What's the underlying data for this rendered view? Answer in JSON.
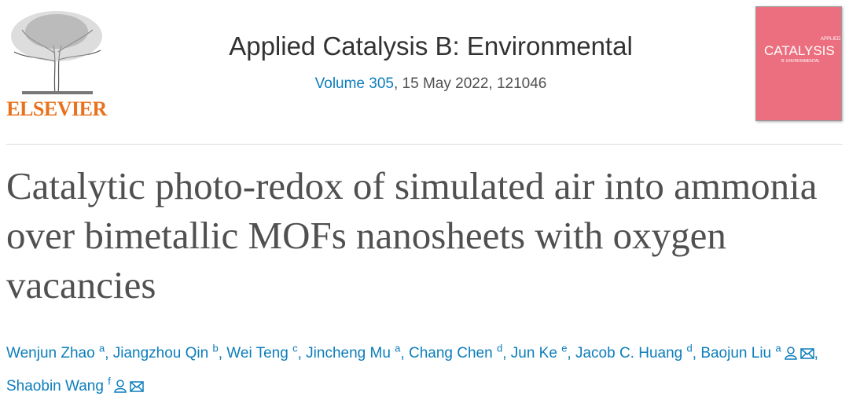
{
  "header": {
    "publisher": "ELSEVIER",
    "journal": "Applied Catalysis B: Environmental",
    "volume": "Volume 305",
    "issue_info": ", 15 May 2022, 121046",
    "cover": {
      "line1": "APPLIED",
      "line2": "CATALYSIS",
      "line3": "B: ENVIRONMENTAL"
    }
  },
  "article": {
    "title": "Catalytic photo-redox of simulated air into ammonia over bimetallic MOFs nanosheets with oxygen vacancies",
    "separator": ", ",
    "authors": [
      {
        "name": "Wenjun Zhao",
        "sup": "a"
      },
      {
        "name": "Jiangzhou Qin",
        "sup": "b"
      },
      {
        "name": "Wei Teng",
        "sup": "c"
      },
      {
        "name": "Jincheng Mu",
        "sup": "a"
      },
      {
        "name": "Chang Chen",
        "sup": "d"
      },
      {
        "name": "Jun Ke",
        "sup": "e"
      },
      {
        "name": "Jacob C. Huang",
        "sup": "d"
      },
      {
        "name": "Baojun Liu",
        "sup": "a"
      },
      {
        "name": "Shaobin Wang",
        "sup": "f"
      }
    ]
  }
}
